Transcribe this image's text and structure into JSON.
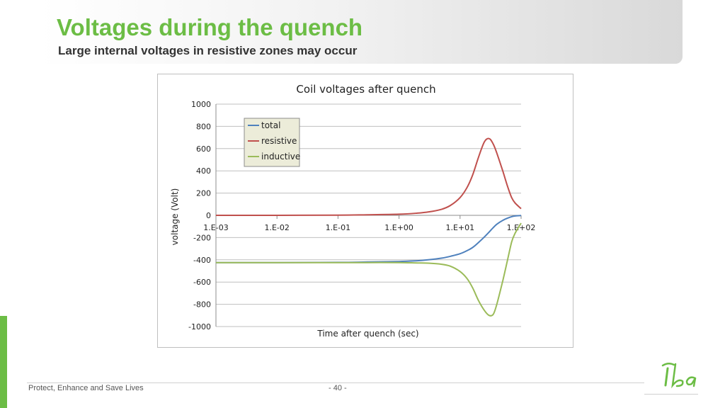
{
  "slide": {
    "title": "Voltages during the quench",
    "subtitle": "Large internal voltages in resistive zones may occur",
    "footer_tagline": "Protect, Enhance and Save Lives",
    "page_number": "- 40 -",
    "accent_color": "#6cbd45"
  },
  "chart_data": {
    "type": "line",
    "title": "Coil voltages after quench",
    "xlabel": "Time after quench (sec)",
    "ylabel": "voltage (Volt)",
    "x_scale": "log",
    "xlim": [
      0.001,
      100
    ],
    "ylim": [
      -1000,
      1000
    ],
    "x_ticks": [
      0.001,
      0.01,
      0.1,
      1,
      10,
      100
    ],
    "x_tick_labels": [
      "1.E-03",
      "1.E-02",
      "1.E-01",
      "1.E+00",
      "1.E+01",
      "1.E+02"
    ],
    "y_ticks": [
      1000,
      800,
      600,
      400,
      200,
      0,
      -200,
      -400,
      -600,
      -800,
      -1000
    ],
    "y_tick_labels": [
      "1000",
      "800",
      "600",
      "400",
      "200",
      "0",
      "-200",
      "-400",
      "-600",
      "-800",
      "-1000"
    ],
    "grid": true,
    "legend_position": "top-left",
    "x": [
      0.001,
      0.01,
      0.1,
      0.3,
      1,
      2,
      3,
      5,
      7,
      10,
      13,
      16,
      20,
      25,
      30,
      35,
      40,
      50,
      60,
      70,
      80,
      100
    ],
    "series": [
      {
        "name": "total",
        "color": "#4f81bd",
        "values": [
          -425,
          -425,
          -423,
          -420,
          -415,
          -408,
          -400,
          -385,
          -368,
          -345,
          -318,
          -290,
          -245,
          -195,
          -150,
          -110,
          -80,
          -45,
          -25,
          -12,
          -6,
          -2
        ]
      },
      {
        "name": "resistive",
        "color": "#c0504d",
        "values": [
          0,
          0,
          2,
          5,
          10,
          20,
          30,
          55,
          90,
          160,
          250,
          360,
          520,
          660,
          690,
          640,
          560,
          400,
          260,
          160,
          110,
          60
        ]
      },
      {
        "name": "inductive",
        "color": "#9bbb59",
        "values": [
          -425,
          -425,
          -425,
          -425,
          -425,
          -428,
          -430,
          -440,
          -458,
          -505,
          -568,
          -650,
          -765,
          -855,
          -900,
          -890,
          -800,
          -590,
          -400,
          -240,
          -160,
          -70
        ]
      }
    ]
  }
}
